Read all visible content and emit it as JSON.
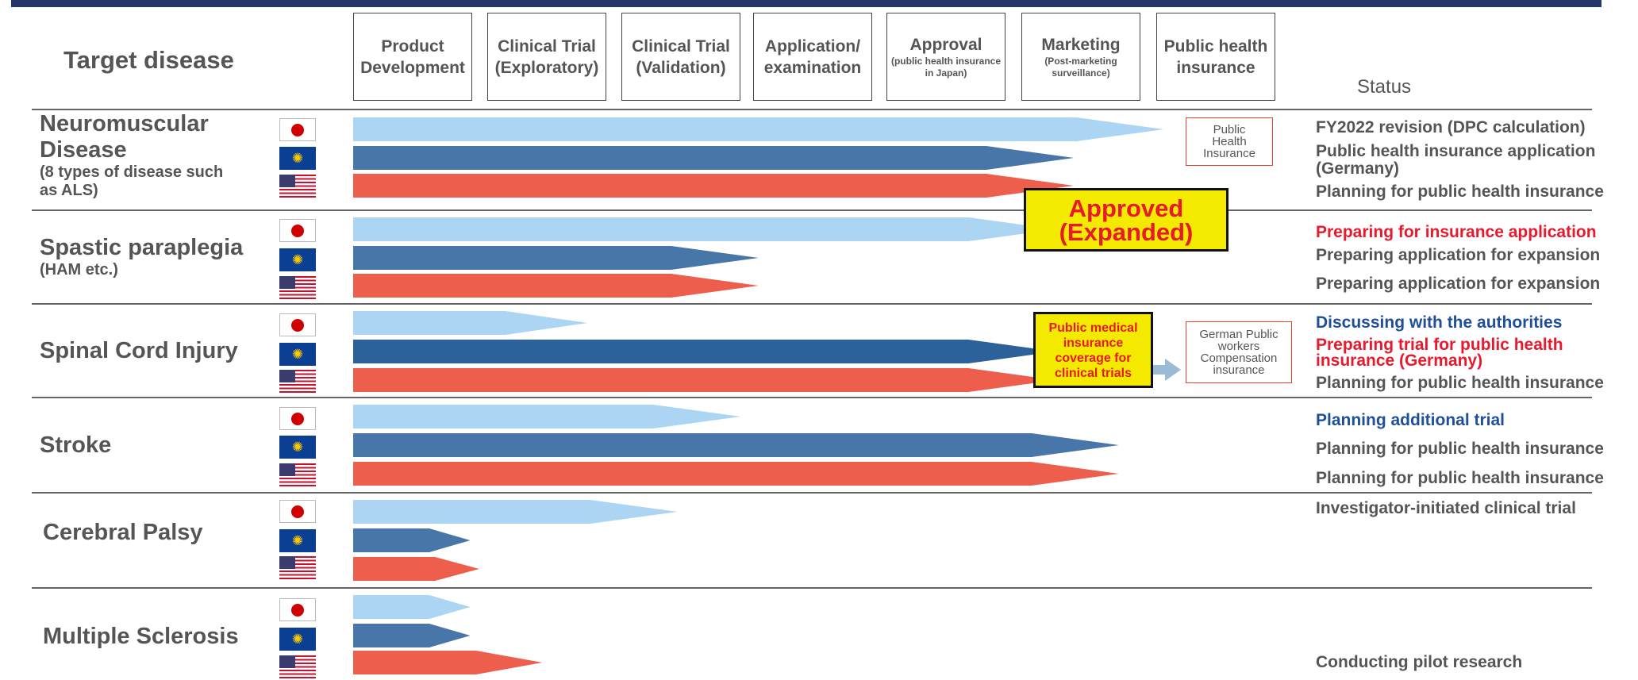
{
  "header": {
    "target_disease": "Target disease",
    "status": "Status",
    "phases": [
      {
        "label": "Product Development",
        "sub": ""
      },
      {
        "label": "Clinical Trial (Exploratory)",
        "sub": ""
      },
      {
        "label": "Clinical Trial (Validation)",
        "sub": ""
      },
      {
        "label": "Application/ examination",
        "sub": ""
      },
      {
        "label": "Approval",
        "sub": "(public health insurance in Japan)"
      },
      {
        "label": "Marketing",
        "sub": "(Post-marketing surveillance)"
      },
      {
        "label": "Public health insurance",
        "sub": ""
      }
    ]
  },
  "rows": [
    {
      "disease": "Neuromuscular Disease",
      "detail": "(8 types of disease such as ALS)",
      "bars": [
        {
          "region": "Japan",
          "color": "#abd5f2",
          "progress": 0.9
        },
        {
          "region": "EU",
          "color": "#4876a8",
          "progress": 0.8
        },
        {
          "region": "US",
          "color": "#ee5e4c",
          "progress": 0.8
        }
      ],
      "status": [
        {
          "text": "FY2022 revision (DPC calculation)",
          "color": "gray"
        },
        {
          "text": "Public health insurance application (Germany)",
          "color": "gray"
        },
        {
          "text": "Planning for public health insurance",
          "color": "gray"
        }
      ]
    },
    {
      "disease": "Spastic paraplegia",
      "detail": "(HAM etc.)",
      "bars": [
        {
          "region": "Japan",
          "color": "#abd5f2",
          "progress": 0.78
        },
        {
          "region": "EU",
          "color": "#4876a8",
          "progress": 0.45
        },
        {
          "region": "US",
          "color": "#ee5e4c",
          "progress": 0.45
        }
      ],
      "status": [
        {
          "text": "Preparing for insurance application",
          "color": "red"
        },
        {
          "text": "Preparing application for expansion",
          "color": "gray"
        },
        {
          "text": "Preparing application for expansion",
          "color": "gray"
        }
      ]
    },
    {
      "disease": "Spinal Cord Injury",
      "detail": "",
      "bars": [
        {
          "region": "Japan",
          "color": "#abd5f2",
          "progress": 0.26
        },
        {
          "region": "EU",
          "color": "#2d6199",
          "progress": 0.78
        },
        {
          "region": "US",
          "color": "#ee5e4c",
          "progress": 0.78
        }
      ],
      "status": [
        {
          "text": "Discussing with the authorities",
          "color": "blue"
        },
        {
          "text": "Preparing trial for public health insurance (Germany)",
          "color": "red"
        },
        {
          "text": "Planning for public health insurance",
          "color": "gray"
        }
      ]
    },
    {
      "disease": "Stroke",
      "detail": "",
      "bars": [
        {
          "region": "Japan",
          "color": "#abd5f2",
          "progress": 0.43
        },
        {
          "region": "EU",
          "color": "#4876a8",
          "progress": 0.85
        },
        {
          "region": "US",
          "color": "#ee5e4c",
          "progress": 0.85
        }
      ],
      "status": [
        {
          "text": "Planning additional trial",
          "color": "blue"
        },
        {
          "text": "Planning for public health insurance",
          "color": "gray"
        },
        {
          "text": "Planning for public health insurance",
          "color": "gray"
        }
      ]
    },
    {
      "disease": "Cerebral Palsy",
      "detail": "",
      "bars": [
        {
          "region": "Japan",
          "color": "#abd5f2",
          "progress": 0.36
        },
        {
          "region": "EU",
          "color": "#4876a8",
          "progress": 0.13
        },
        {
          "region": "US",
          "color": "#ee5e4c",
          "progress": 0.14
        }
      ],
      "status": [
        {
          "text": "Investigator-initiated clinical trial",
          "color": "gray"
        }
      ]
    },
    {
      "disease": "Multiple Sclerosis",
      "detail": "",
      "bars": [
        {
          "region": "Japan",
          "color": "#abd5f2",
          "progress": 0.13
        },
        {
          "region": "EU",
          "color": "#4876a8",
          "progress": 0.13
        },
        {
          "region": "US",
          "color": "#ee5e4c",
          "progress": 0.21
        }
      ],
      "status": [
        {
          "text": "Conducting pilot research",
          "color": "gray"
        }
      ]
    }
  ],
  "callouts": {
    "public_health_insurance": "Public Health Insurance",
    "approved": "Approved (Expanded)",
    "coverage": "Public medical insurance coverage for clinical trials",
    "german": "German Public workers Compensation insurance"
  }
}
